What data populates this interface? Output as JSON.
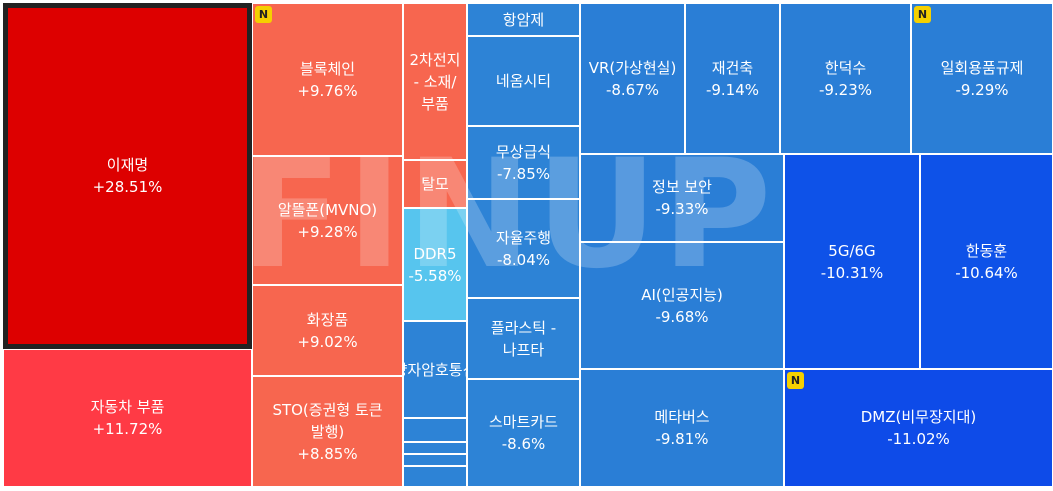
{
  "chart_data": {
    "type": "treemap",
    "unit": "%",
    "items": [
      {
        "name": "이재명",
        "value": 28.51,
        "label": "+28.51%",
        "color": "#dd0000",
        "selected": true
      },
      {
        "name": "자동차 부품",
        "value": 11.72,
        "label": "+11.72%",
        "color": "#ff3a45"
      },
      {
        "name": "블록체인",
        "value": 9.76,
        "label": "+9.76%",
        "color": "#f7664f",
        "badge": "N"
      },
      {
        "name": "알뜰폰(MVNO)",
        "value": 9.28,
        "label": "+9.28%",
        "color": "#f7664f"
      },
      {
        "name": "화장품",
        "value": 9.02,
        "label": "+9.02%",
        "color": "#f7664f"
      },
      {
        "name": "STO(증권형 토큰 발행)",
        "value": 8.85,
        "label": "+8.85%",
        "color": "#f7664f"
      },
      {
        "name": "2차전지 - 소재/부품",
        "value": null,
        "label": "",
        "color": "#f7664f"
      },
      {
        "name": "탈모",
        "value": null,
        "label": "",
        "color": "#f7664f"
      },
      {
        "name": "DDR5",
        "value": -5.58,
        "label": "-5.58%",
        "color": "#57c5ee"
      },
      {
        "name": "양자암호통신",
        "value": null,
        "label": "",
        "color": "#2d83d6"
      },
      {
        "name": "",
        "value": null,
        "label": "",
        "color": "#2d83d6"
      },
      {
        "name": "",
        "value": null,
        "label": "",
        "color": "#2d83d6"
      },
      {
        "name": "",
        "value": null,
        "label": "",
        "color": "#2d83d6"
      },
      {
        "name": "",
        "value": null,
        "label": "",
        "color": "#2d83d6"
      },
      {
        "name": "항암제",
        "value": null,
        "label": "",
        "color": "#2d83d6"
      },
      {
        "name": "네옴시티",
        "value": null,
        "label": "",
        "color": "#2d83d6"
      },
      {
        "name": "무상급식",
        "value": -7.85,
        "label": "-7.85%",
        "color": "#2d83d6"
      },
      {
        "name": "자율주행",
        "value": -8.04,
        "label": "-8.04%",
        "color": "#2d83d6"
      },
      {
        "name": "플라스틱 - 나프타",
        "value": null,
        "label": "",
        "color": "#2d83d6"
      },
      {
        "name": "스마트카드",
        "value": -8.6,
        "label": "-8.6%",
        "color": "#2d83d6"
      },
      {
        "name": "VR(가상현실)",
        "value": -8.67,
        "label": "-8.67%",
        "color": "#2a7ed6"
      },
      {
        "name": "재건축",
        "value": -9.14,
        "label": "-9.14%",
        "color": "#2a7ed6"
      },
      {
        "name": "한덕수",
        "value": -9.23,
        "label": "-9.23%",
        "color": "#2a7ed6"
      },
      {
        "name": "일회용품규제",
        "value": -9.29,
        "label": "-9.29%",
        "color": "#2a7ed6",
        "badge": "N"
      },
      {
        "name": "정보 보안",
        "value": -9.33,
        "label": "-9.33%",
        "color": "#2a7ed6"
      },
      {
        "name": "AI(인공지능)",
        "value": -9.68,
        "label": "-9.68%",
        "color": "#2a7ed6"
      },
      {
        "name": "메타버스",
        "value": -9.81,
        "label": "-9.81%",
        "color": "#2a7ed6"
      },
      {
        "name": "5G/6G",
        "value": -10.31,
        "label": "-10.31%",
        "color": "#0e52e8"
      },
      {
        "name": "한동훈",
        "value": -10.64,
        "label": "-10.64%",
        "color": "#0e52e8"
      },
      {
        "name": "DMZ(비무장지대)",
        "value": -11.02,
        "label": "-11.02%",
        "color": "#0e4be8",
        "badge": "N"
      }
    ]
  },
  "watermark": "FINUP"
}
